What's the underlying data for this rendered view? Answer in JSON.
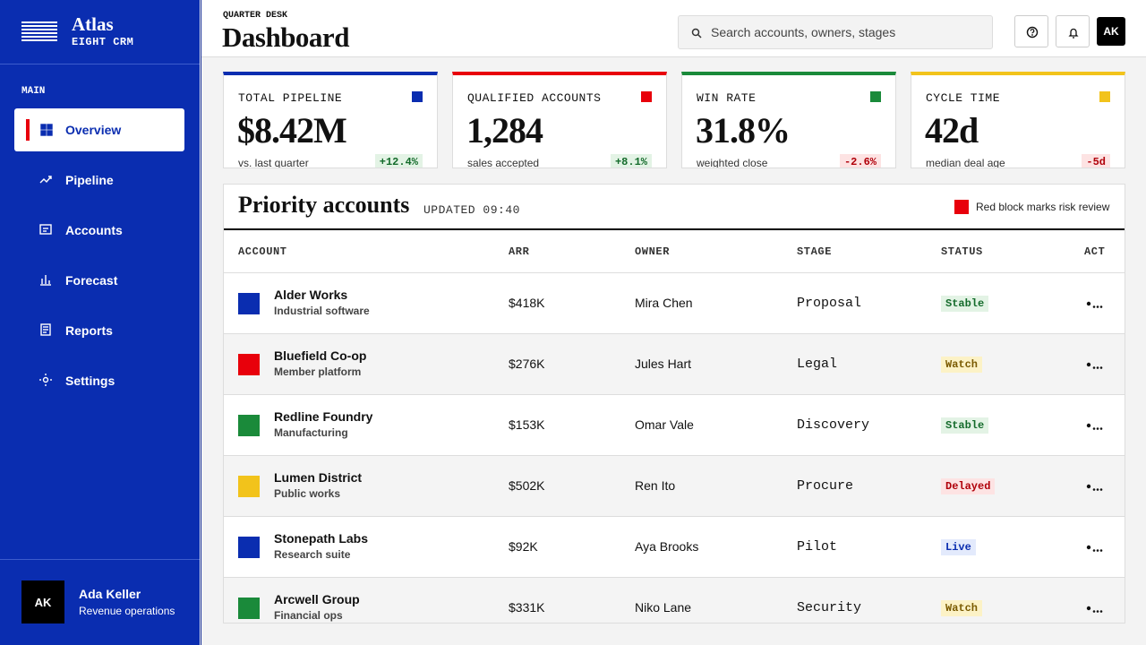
{
  "brand": {
    "name": "Atlas",
    "sub": "EIGHT CRM"
  },
  "nav": {
    "section": "MAIN",
    "active": 0,
    "items": [
      "Overview",
      "Pipeline",
      "Accounts",
      "Forecast",
      "Reports",
      "Settings"
    ]
  },
  "user": {
    "initials": "AK",
    "name": "Ada Keller",
    "role": "Revenue operations"
  },
  "header": {
    "eyebrow": "QUARTER DESK",
    "title": "Dashboard",
    "search_placeholder": "Search accounts, owners, stages",
    "avatar": "AK"
  },
  "kpis": [
    {
      "label": "TOTAL PIPELINE",
      "value": "$8.42M",
      "note": "vs. last quarter",
      "delta": "+12.4%",
      "color": "#0a2db0"
    },
    {
      "label": "QUALIFIED ACCOUNTS",
      "value": "1,284",
      "note": "sales accepted",
      "delta": "+8.1%",
      "color": "#e8000b"
    },
    {
      "label": "WIN RATE",
      "value": "31.8%",
      "note": "weighted close",
      "delta": "-2.6%",
      "color": "#1a8a3a"
    },
    {
      "label": "CYCLE TIME",
      "value": "42d",
      "note": "median deal age",
      "delta": "-5d",
      "color": "#f2c31b"
    }
  ],
  "table": {
    "title": "Priority accounts",
    "updated": "UPDATED 09:40",
    "legend": "Red block marks risk review",
    "legend_color": "#e8000b",
    "columns": [
      "ACCOUNT",
      "ARR",
      "OWNER",
      "STAGE",
      "STATUS",
      "ACT"
    ],
    "rows": [
      {
        "name": "Alder Works",
        "sub": "Industrial software",
        "arr": "$418K",
        "owner": "Mira Chen",
        "stage": "Proposal",
        "status": "Stable",
        "tone": "green",
        "color": "#0a2db0"
      },
      {
        "name": "Bluefield Co-op",
        "sub": "Member platform",
        "arr": "$276K",
        "owner": "Jules Hart",
        "stage": "Legal",
        "status": "Watch",
        "tone": "yellow",
        "color": "#e8000b"
      },
      {
        "name": "Redline Foundry",
        "sub": "Manufacturing",
        "arr": "$153K",
        "owner": "Omar Vale",
        "stage": "Discovery",
        "status": "Stable",
        "tone": "green",
        "color": "#1a8a3a"
      },
      {
        "name": "Lumen District",
        "sub": "Public works",
        "arr": "$502K",
        "owner": "Ren Ito",
        "stage": "Procure",
        "status": "Delayed",
        "tone": "red",
        "color": "#f2c31b"
      },
      {
        "name": "Stonepath Labs",
        "sub": "Research suite",
        "arr": "$92K",
        "owner": "Aya Brooks",
        "stage": "Pilot",
        "status": "Live",
        "tone": "blue",
        "color": "#0a2db0"
      },
      {
        "name": "Arcwell Group",
        "sub": "Financial ops",
        "arr": "$331K",
        "owner": "Niko Lane",
        "stage": "Security",
        "status": "Watch",
        "tone": "yellow",
        "color": "#1a8a3a"
      }
    ]
  }
}
